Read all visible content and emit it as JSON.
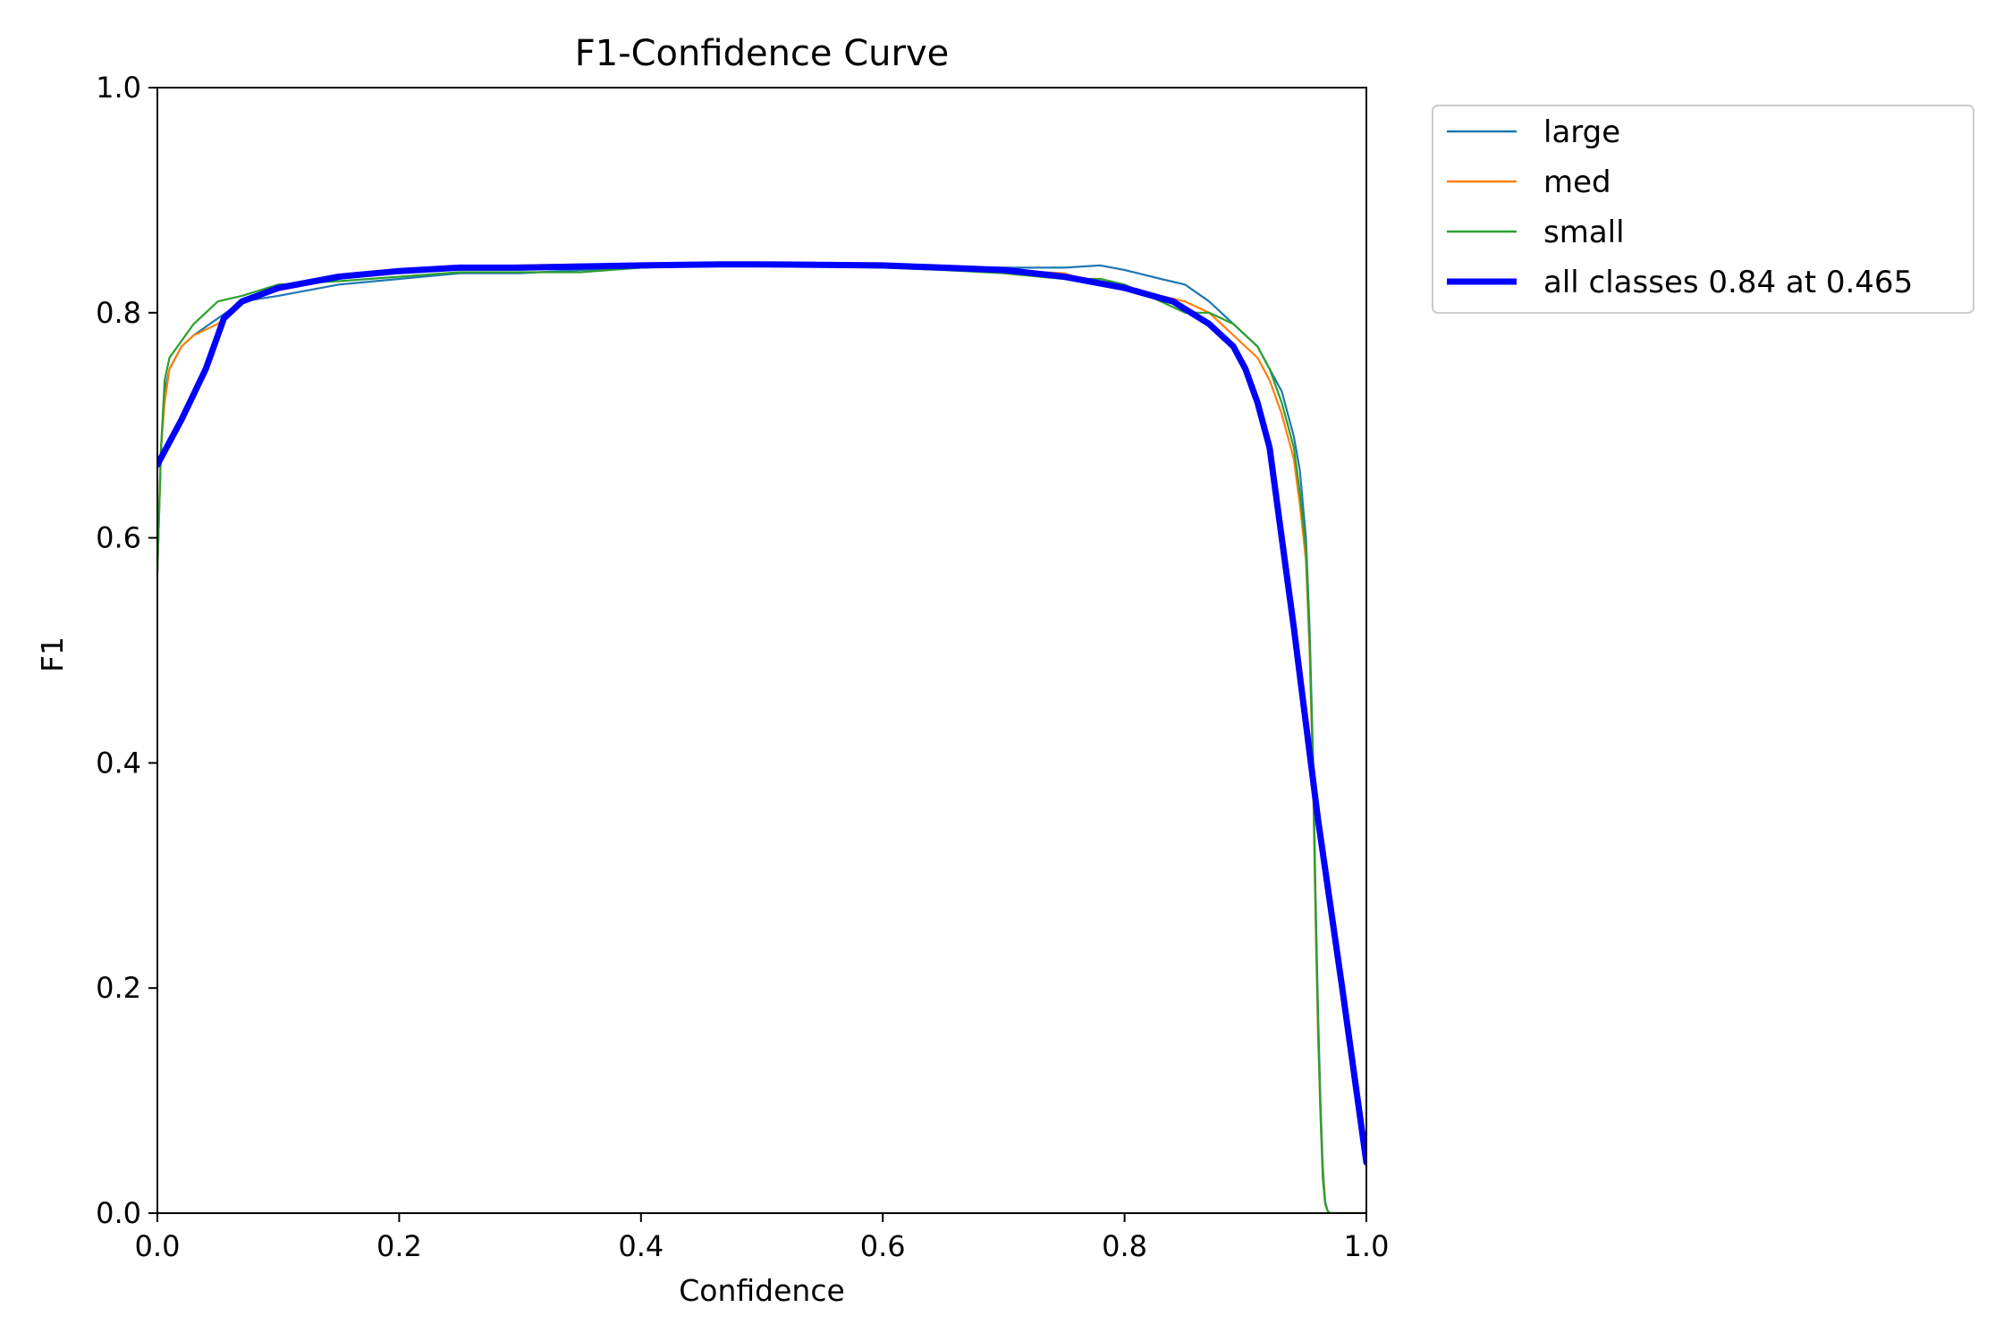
{
  "chart_data": {
    "type": "line",
    "title": "F1-Confidence Curve",
    "xlabel": "Confidence",
    "ylabel": "F1",
    "xlim": [
      0.0,
      1.0
    ],
    "ylim": [
      0.0,
      1.0
    ],
    "xticks": [
      "0.0",
      "0.2",
      "0.4",
      "0.6",
      "0.8",
      "1.0"
    ],
    "yticks": [
      "0.0",
      "0.2",
      "0.4",
      "0.6",
      "0.8",
      "1.0"
    ],
    "grid": false,
    "legend_position": "outside-top-right",
    "series": [
      {
        "name": "large",
        "color": "#1f77b4",
        "width": "thin",
        "x": [
          0.0,
          0.003,
          0.006,
          0.01,
          0.02,
          0.03,
          0.05,
          0.07,
          0.1,
          0.15,
          0.2,
          0.25,
          0.3,
          0.35,
          0.4,
          0.45,
          0.5,
          0.55,
          0.6,
          0.65,
          0.7,
          0.75,
          0.78,
          0.8,
          0.83,
          0.85,
          0.87,
          0.89,
          0.91,
          0.92,
          0.93,
          0.94,
          0.945,
          0.95,
          0.953,
          0.956,
          0.958,
          0.96,
          0.962,
          0.964,
          0.966,
          0.968,
          0.97,
          0.975,
          1.0
        ],
        "values": [
          0.57,
          0.68,
          0.73,
          0.75,
          0.77,
          0.78,
          0.795,
          0.81,
          0.815,
          0.825,
          0.83,
          0.835,
          0.835,
          0.838,
          0.84,
          0.843,
          0.843,
          0.843,
          0.842,
          0.84,
          0.84,
          0.84,
          0.842,
          0.838,
          0.83,
          0.825,
          0.81,
          0.79,
          0.77,
          0.75,
          0.73,
          0.69,
          0.66,
          0.6,
          0.52,
          0.4,
          0.28,
          0.18,
          0.1,
          0.04,
          0.01,
          0.002,
          0.0,
          0.0,
          0.0
        ]
      },
      {
        "name": "med",
        "color": "#ff7f0e",
        "width": "thin",
        "x": [
          0.0,
          0.003,
          0.006,
          0.01,
          0.02,
          0.03,
          0.05,
          0.07,
          0.1,
          0.15,
          0.2,
          0.25,
          0.3,
          0.35,
          0.4,
          0.45,
          0.5,
          0.55,
          0.6,
          0.65,
          0.7,
          0.75,
          0.78,
          0.8,
          0.83,
          0.85,
          0.87,
          0.89,
          0.91,
          0.92,
          0.93,
          0.94,
          0.945,
          0.95,
          0.953,
          0.956,
          0.958,
          0.96,
          0.962,
          0.964,
          0.966,
          0.968,
          0.97,
          0.975,
          1.0
        ],
        "values": [
          0.57,
          0.68,
          0.72,
          0.75,
          0.77,
          0.78,
          0.79,
          0.81,
          0.82,
          0.83,
          0.838,
          0.84,
          0.842,
          0.843,
          0.843,
          0.843,
          0.842,
          0.842,
          0.842,
          0.84,
          0.838,
          0.835,
          0.825,
          0.82,
          0.815,
          0.81,
          0.8,
          0.78,
          0.76,
          0.74,
          0.71,
          0.67,
          0.63,
          0.58,
          0.5,
          0.38,
          0.26,
          0.16,
          0.09,
          0.035,
          0.008,
          0.002,
          0.0,
          0.0,
          0.0
        ]
      },
      {
        "name": "small",
        "color": "#2ca02c",
        "width": "thin",
        "x": [
          0.0,
          0.003,
          0.006,
          0.01,
          0.02,
          0.03,
          0.05,
          0.07,
          0.1,
          0.15,
          0.2,
          0.25,
          0.3,
          0.35,
          0.4,
          0.45,
          0.5,
          0.55,
          0.6,
          0.65,
          0.7,
          0.75,
          0.78,
          0.8,
          0.83,
          0.85,
          0.87,
          0.89,
          0.91,
          0.92,
          0.93,
          0.94,
          0.945,
          0.95,
          0.953,
          0.956,
          0.958,
          0.96,
          0.962,
          0.964,
          0.966,
          0.968,
          0.97,
          0.975,
          1.0
        ],
        "values": [
          0.57,
          0.68,
          0.74,
          0.76,
          0.775,
          0.79,
          0.81,
          0.815,
          0.825,
          0.828,
          0.832,
          0.836,
          0.836,
          0.836,
          0.84,
          0.842,
          0.842,
          0.841,
          0.84,
          0.838,
          0.835,
          0.83,
          0.83,
          0.825,
          0.81,
          0.8,
          0.8,
          0.79,
          0.77,
          0.75,
          0.72,
          0.68,
          0.64,
          0.59,
          0.51,
          0.39,
          0.27,
          0.17,
          0.09,
          0.03,
          0.008,
          0.002,
          0.0,
          0.0,
          0.0
        ]
      },
      {
        "name": "all classes 0.84 at 0.465",
        "color": "#0000ff",
        "width": "thick",
        "x": [
          0.0,
          0.02,
          0.04,
          0.055,
          0.07,
          0.1,
          0.15,
          0.2,
          0.25,
          0.3,
          0.4,
          0.465,
          0.5,
          0.6,
          0.65,
          0.7,
          0.75,
          0.8,
          0.84,
          0.87,
          0.89,
          0.9,
          0.91,
          0.92,
          0.94,
          0.96,
          0.98,
          1.0
        ],
        "values": [
          0.665,
          0.705,
          0.75,
          0.795,
          0.81,
          0.822,
          0.832,
          0.837,
          0.84,
          0.84,
          0.842,
          0.843,
          0.843,
          0.842,
          0.84,
          0.838,
          0.832,
          0.822,
          0.81,
          0.79,
          0.77,
          0.75,
          0.72,
          0.68,
          0.52,
          0.35,
          0.2,
          0.045
        ]
      }
    ]
  }
}
